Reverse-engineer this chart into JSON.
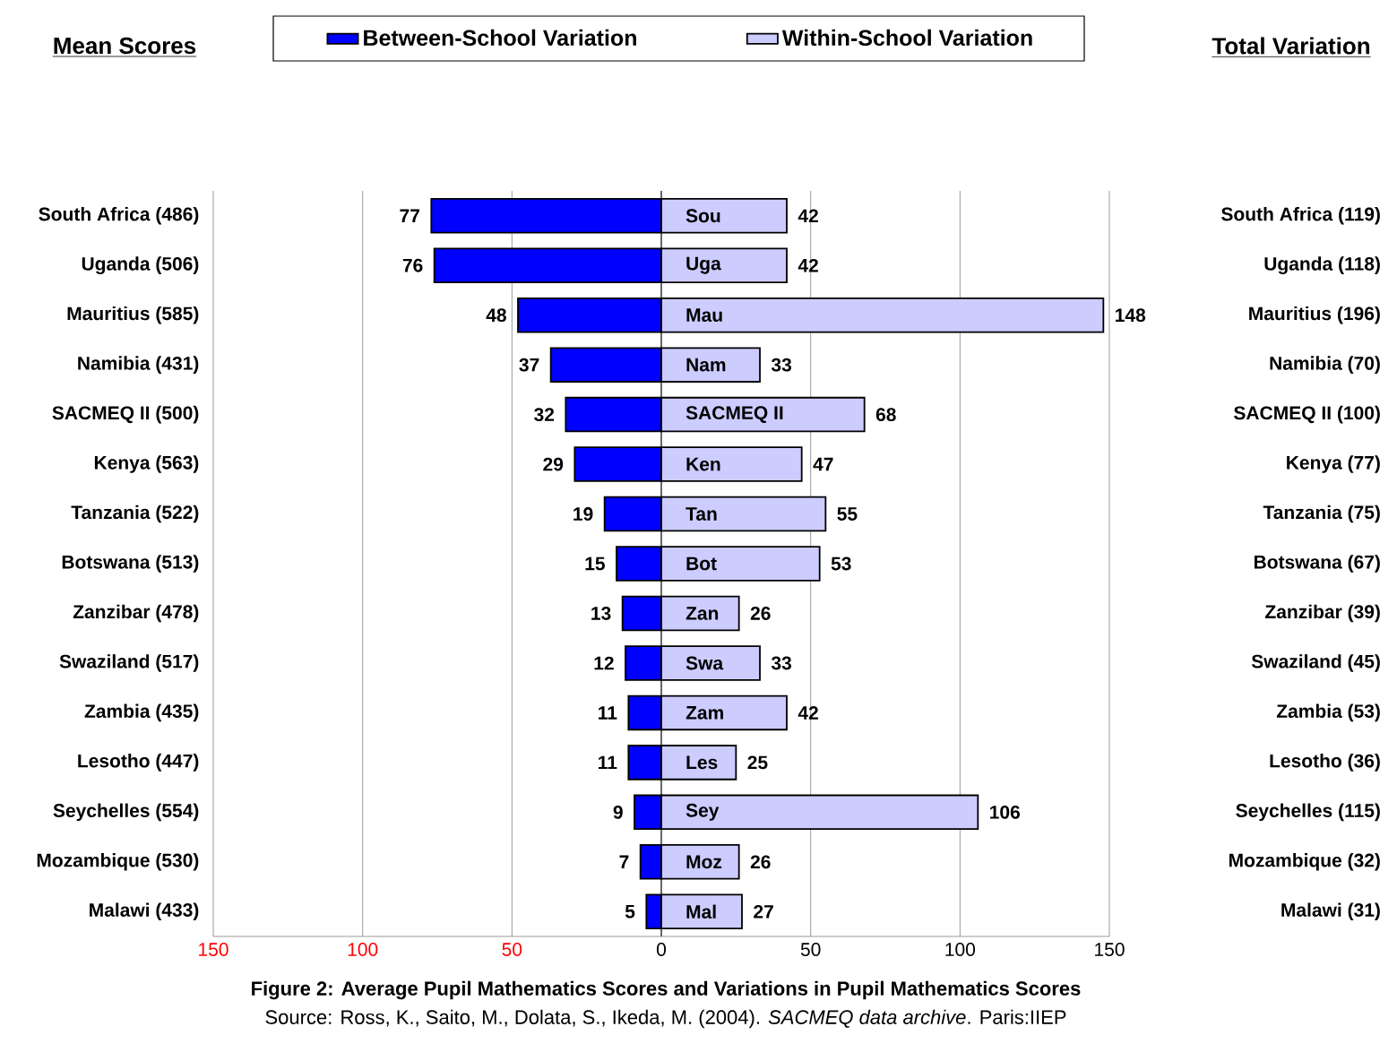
{
  "chart_data": [
    {
      "type": "bar",
      "orientation": "horizontal",
      "title": "Figure 2: Average Pupil Mathematics Scores and Variations in Pupil Mathematics Scores",
      "ylabel": "Mean Scores",
      "categories": [
        "South Africa (486)",
        "Uganda (506)",
        "Mauritius (585)",
        "Namibia (431)",
        "SACMEQ II (500)",
        "Kenya (563)",
        "Tanzania (522)",
        "Botswana (513)",
        "Zanzibar (478)",
        "Swaziland (517)",
        "Zambia (435)",
        "Lesotho (447)",
        "Seychelles (554)",
        "Mozambique (530)",
        "Malawi (433)"
      ],
      "series": [
        {
          "name": "Between-School Variation",
          "color": "#0000ff",
          "values": [
            77,
            76,
            48,
            37,
            32,
            29,
            19,
            15,
            13,
            12,
            11,
            11,
            9,
            7,
            5
          ]
        }
      ],
      "data_labels": true,
      "xlim": [
        150,
        0
      ],
      "xticks": [
        150,
        100,
        50,
        {
          "value": 0,
          "label": null
        }
      ],
      "grid": "x",
      "legend": "top",
      "annotations": [
        "Source: Ross, K., Saito, M., Dolata, S., Ikeda, M. (2004). *SACMEQ data archive*. Paris:IIEP"
      ]
    },
    {
      "type": "bar",
      "orientation": "horizontal",
      "y2label": "Total Variation",
      "categories": [
        "Sou",
        "Uga",
        "Mau",
        "Nam",
        "SACMEQ II",
        "Ken",
        "Tan",
        "Bot",
        "Zan",
        "Swa",
        "Zam",
        "Les",
        "Sey",
        "Moz",
        "Mal"
      ],
      "series": [
        {
          "name": "Within-School Variation",
          "color": "#ccccff",
          "values": [
            42,
            42,
            148,
            33,
            68,
            47,
            55,
            53,
            26,
            33,
            42,
            25,
            106,
            26,
            27
          ]
        }
      ],
      "data_labels": true,
      "xlim": [
        0,
        150
      ],
      "xticks": [
        0,
        50,
        100,
        150
      ],
      "grid": "x",
      "legend": "top",
      "annotations": [
        "South Africa (119)",
        "Uganda (118)",
        "Mauritius (196)",
        "Namibia (70)",
        "SACMEQ II (100)",
        "Kenya (77)",
        "Tanzania (75)",
        "Botswana (67)",
        "Zanzibar (39)",
        "Swaziland (45)",
        "Zambia (53)",
        "Lesotho (36)",
        "Seychelles (115)",
        "Mozambique (32)",
        "Malawi (31)"
      ]
    }
  ]
}
